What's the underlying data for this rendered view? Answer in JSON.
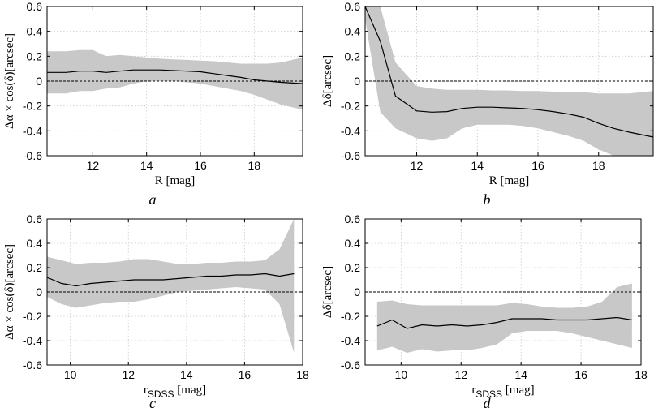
{
  "chart_data": [
    {
      "type": "area",
      "panel_label": "a",
      "ylabel": "Δα × cos(δ)[arcsec]",
      "xlabel": "R [mag]",
      "xlim": [
        10.3,
        19.8
      ],
      "ylim": [
        -0.6,
        0.6
      ],
      "xticks": [
        12,
        14,
        16,
        18
      ],
      "yticks": [
        -0.6,
        -0.4,
        -0.2,
        0,
        0.2,
        0.4,
        0.6
      ],
      "grid": true,
      "reference_line": 0,
      "series": [
        {
          "x": [
            10.3,
            11.0,
            11.5,
            12.0,
            12.5,
            13.0,
            13.5,
            14.0,
            14.5,
            15.0,
            15.5,
            16.0,
            16.5,
            17.0,
            17.5,
            18.0,
            18.5,
            19.0,
            19.8
          ],
          "mean": [
            0.07,
            0.07,
            0.08,
            0.08,
            0.07,
            0.08,
            0.09,
            0.09,
            0.09,
            0.085,
            0.08,
            0.075,
            0.06,
            0.045,
            0.03,
            0.01,
            0.0,
            -0.01,
            -0.02
          ],
          "upper": [
            0.24,
            0.24,
            0.25,
            0.25,
            0.2,
            0.21,
            0.2,
            0.19,
            0.18,
            0.175,
            0.17,
            0.165,
            0.16,
            0.15,
            0.14,
            0.14,
            0.14,
            0.15,
            0.19
          ],
          "lower": [
            -0.1,
            -0.1,
            -0.08,
            -0.08,
            -0.06,
            -0.05,
            -0.02,
            0.0,
            0.0,
            0.0,
            -0.01,
            -0.02,
            -0.04,
            -0.06,
            -0.08,
            -0.11,
            -0.15,
            -0.19,
            -0.23
          ]
        }
      ]
    },
    {
      "type": "area",
      "panel_label": "b",
      "ylabel": "Δδ[arcsec]",
      "xlabel": "R [mag]",
      "xlim": [
        10.3,
        19.8
      ],
      "ylim": [
        -0.6,
        0.6
      ],
      "xticks": [
        12,
        14,
        16,
        18
      ],
      "yticks": [
        -0.6,
        -0.4,
        -0.2,
        0,
        0.2,
        0.4,
        0.6
      ],
      "grid": true,
      "reference_line": 0,
      "series": [
        {
          "x": [
            10.3,
            10.8,
            11.3,
            12.0,
            12.5,
            13.0,
            13.5,
            14.0,
            14.5,
            15.0,
            15.5,
            16.0,
            16.5,
            17.0,
            17.5,
            18.0,
            18.5,
            19.0,
            19.8
          ],
          "mean": [
            0.6,
            0.32,
            -0.12,
            -0.24,
            -0.25,
            -0.245,
            -0.22,
            -0.21,
            -0.21,
            -0.215,
            -0.22,
            -0.23,
            -0.245,
            -0.265,
            -0.29,
            -0.34,
            -0.38,
            -0.41,
            -0.45
          ],
          "upper": [
            0.6,
            0.6,
            0.15,
            -0.04,
            -0.06,
            -0.07,
            -0.07,
            -0.07,
            -0.075,
            -0.075,
            -0.08,
            -0.08,
            -0.085,
            -0.09,
            -0.09,
            -0.1,
            -0.1,
            -0.1,
            -0.08
          ],
          "lower": [
            0.5,
            -0.25,
            -0.38,
            -0.46,
            -0.48,
            -0.46,
            -0.38,
            -0.35,
            -0.35,
            -0.35,
            -0.36,
            -0.38,
            -0.41,
            -0.44,
            -0.48,
            -0.55,
            -0.6,
            -0.6,
            -0.6
          ]
        }
      ]
    },
    {
      "type": "area",
      "panel_label": "c",
      "ylabel": "Δα × cos(δ)[arcsec]",
      "xlabel": "r_SDSS [mag]",
      "xlim": [
        9.2,
        18.0
      ],
      "ylim": [
        -0.6,
        0.6
      ],
      "xticks": [
        10,
        12,
        14,
        16,
        18
      ],
      "yticks": [
        -0.6,
        -0.4,
        -0.2,
        0,
        0.2,
        0.4,
        0.6
      ],
      "grid": true,
      "reference_line": 0,
      "series": [
        {
          "x": [
            9.2,
            9.7,
            10.2,
            10.7,
            11.2,
            11.7,
            12.2,
            12.7,
            13.2,
            13.7,
            14.2,
            14.7,
            15.2,
            15.7,
            16.2,
            16.7,
            17.2,
            17.7
          ],
          "mean": [
            0.12,
            0.07,
            0.05,
            0.07,
            0.08,
            0.09,
            0.1,
            0.1,
            0.1,
            0.11,
            0.12,
            0.13,
            0.13,
            0.14,
            0.14,
            0.15,
            0.13,
            0.15
          ],
          "upper": [
            0.29,
            0.26,
            0.23,
            0.24,
            0.24,
            0.25,
            0.27,
            0.27,
            0.25,
            0.23,
            0.23,
            0.24,
            0.24,
            0.25,
            0.25,
            0.26,
            0.35,
            0.6
          ],
          "lower": [
            -0.04,
            -0.1,
            -0.13,
            -0.11,
            -0.09,
            -0.08,
            -0.08,
            -0.06,
            -0.03,
            0.0,
            0.01,
            0.02,
            0.03,
            0.04,
            0.03,
            0.02,
            -0.1,
            -0.5
          ]
        }
      ]
    },
    {
      "type": "area",
      "panel_label": "d",
      "ylabel": "Δδ[arcsec]",
      "xlabel": "r_SDSS [mag]",
      "xlim": [
        8.8,
        18.0
      ],
      "ylim": [
        -0.6,
        0.6
      ],
      "xticks": [
        10,
        12,
        14,
        16,
        18
      ],
      "yticks": [
        -0.6,
        -0.4,
        -0.2,
        0,
        0.2,
        0.4,
        0.6
      ],
      "grid": true,
      "reference_line": 0,
      "series": [
        {
          "x": [
            9.2,
            9.7,
            10.2,
            10.7,
            11.2,
            11.7,
            12.2,
            12.7,
            13.2,
            13.7,
            14.2,
            14.7,
            15.2,
            15.7,
            16.2,
            16.7,
            17.2,
            17.7
          ],
          "mean": [
            -0.28,
            -0.23,
            -0.3,
            -0.27,
            -0.28,
            -0.27,
            -0.28,
            -0.27,
            -0.25,
            -0.22,
            -0.22,
            -0.22,
            -0.23,
            -0.23,
            -0.23,
            -0.22,
            -0.21,
            -0.23
          ],
          "upper": [
            -0.08,
            -0.07,
            -0.1,
            -0.11,
            -0.11,
            -0.11,
            -0.11,
            -0.11,
            -0.11,
            -0.09,
            -0.1,
            -0.12,
            -0.13,
            -0.13,
            -0.12,
            -0.08,
            0.04,
            0.07
          ],
          "lower": [
            -0.48,
            -0.45,
            -0.5,
            -0.47,
            -0.49,
            -0.48,
            -0.48,
            -0.46,
            -0.43,
            -0.34,
            -0.32,
            -0.32,
            -0.32,
            -0.34,
            -0.37,
            -0.4,
            -0.43,
            -0.46
          ]
        }
      ]
    }
  ]
}
